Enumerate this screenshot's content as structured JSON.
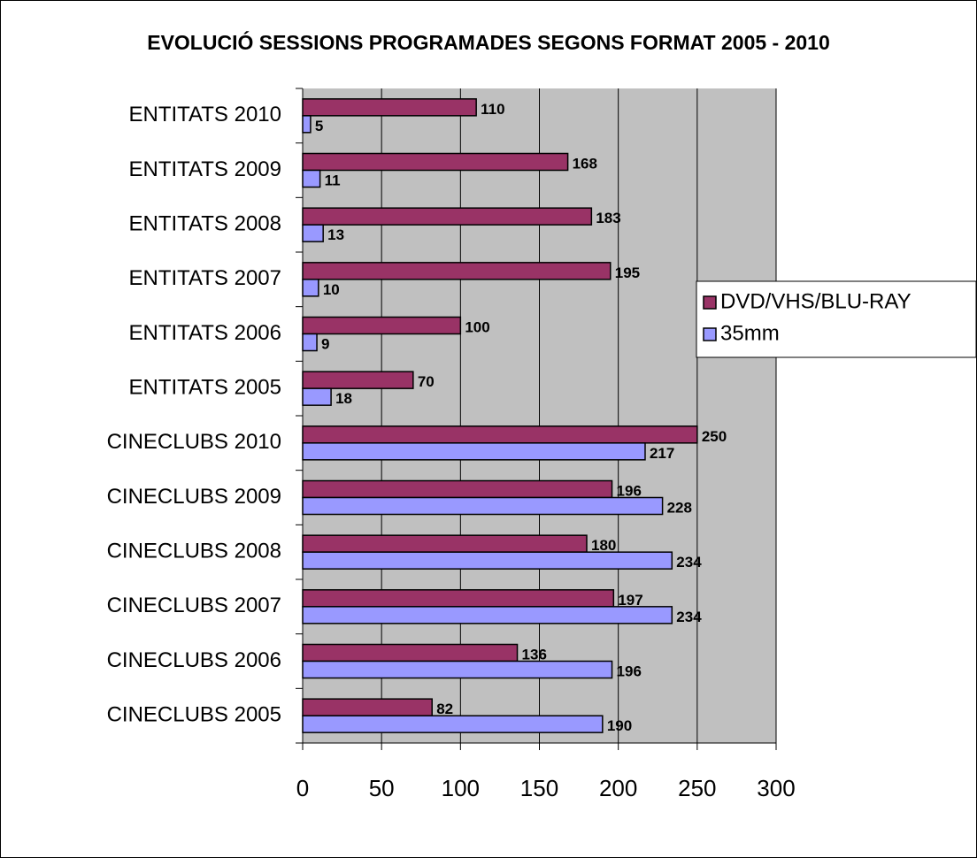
{
  "chart_data": {
    "type": "bar",
    "orientation": "horizontal",
    "title": "EVOLUCIÓ SESSIONS PROGRAMADES SEGONS FORMAT 2005 - 2010",
    "categories": [
      "ENTITATS 2010",
      "ENTITATS 2009",
      "ENTITATS 2008",
      "ENTITATS 2007",
      "ENTITATS 2006",
      "ENTITATS 2005",
      "CINECLUBS 2010",
      "CINECLUBS 2009",
      "CINECLUBS 2008",
      "CINECLUBS 2007",
      "CINECLUBS 2006",
      "CINECLUBS 2005"
    ],
    "series": [
      {
        "name": "DVD/VHS/BLU-RAY",
        "color": "#993366",
        "values": [
          110,
          168,
          183,
          195,
          100,
          70,
          250,
          196,
          180,
          197,
          136,
          82
        ]
      },
      {
        "name": "35mm",
        "color": "#9999ff",
        "values": [
          5,
          11,
          13,
          10,
          9,
          18,
          217,
          228,
          234,
          234,
          196,
          190
        ]
      }
    ],
    "xlim": [
      0,
      300
    ],
    "xticks": [
      0,
      50,
      100,
      150,
      200,
      250,
      300
    ],
    "grid": true,
    "legend": "right"
  }
}
